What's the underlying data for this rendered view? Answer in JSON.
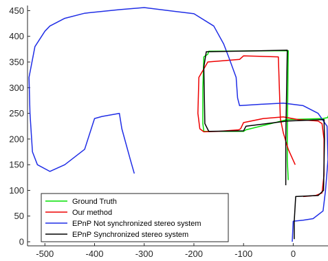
{
  "chart_data": {
    "type": "line",
    "title": "",
    "xlabel": "",
    "ylabel": "",
    "xlim": [
      -535,
      70
    ],
    "ylim": [
      -8,
      460
    ],
    "grid": false,
    "legend_position": "bottom-left",
    "x_ticks": [
      -500,
      -400,
      -300,
      -200,
      -100,
      0
    ],
    "y_ticks": [
      0,
      50,
      100,
      150,
      200,
      250,
      300,
      350,
      400,
      450
    ],
    "x_tick_labels": [
      "-500",
      "-400",
      "-300",
      "-200",
      "-100",
      "0"
    ],
    "y_tick_labels": [
      "0",
      "50",
      "100",
      "150",
      "200",
      "250",
      "300",
      "350",
      "400",
      "450"
    ],
    "series": [
      {
        "name": "Ground Truth",
        "color": "#00e000",
        "x": [
          -10,
          -12,
          -12,
          -10,
          -170,
          -172,
          -180,
          -182,
          -182,
          -180,
          -100,
          -95,
          -12,
          60,
          70,
          70
        ],
        "y": [
          120,
          160,
          200,
          372,
          371,
          365,
          360,
          300,
          230,
          215,
          215,
          218,
          238,
          240,
          242,
          245
        ]
      },
      {
        "name": "Our method",
        "color": "#ee0000",
        "x": [
          4,
          -10,
          -20,
          -26,
          -30,
          -100,
          -108,
          -172,
          -178,
          -190,
          -192,
          -188,
          -180,
          -150,
          -110,
          -106,
          -100,
          -60,
          -20,
          10,
          50,
          58,
          62,
          62,
          58,
          45,
          20
        ],
        "y": [
          150,
          180,
          212,
          240,
          360,
          362,
          355,
          350,
          340,
          320,
          250,
          220,
          214,
          215,
          218,
          220,
          232,
          240,
          243,
          238,
          235,
          230,
          200,
          130,
          95,
          90,
          88
        ]
      },
      {
        "name": "EPnP Not synchronized stereo system",
        "color": "#1f2de6",
        "x": [
          -320,
          -328,
          -345,
          -350,
          -385,
          -400,
          -420,
          -460,
          -490,
          -515,
          -525,
          -530,
          -532,
          -520,
          -500,
          -490,
          -460,
          -420,
          -350,
          -300,
          -200,
          -160,
          -140,
          -130,
          -115,
          -112,
          -108,
          -60,
          -20,
          20,
          50,
          68,
          70,
          65,
          60,
          40,
          20,
          0,
          -2
        ],
        "y": [
          133,
          160,
          220,
          250,
          244,
          240,
          180,
          150,
          137,
          150,
          175,
          250,
          320,
          380,
          410,
          420,
          435,
          445,
          452,
          456,
          444,
          420,
          385,
          360,
          320,
          280,
          265,
          268,
          270,
          265,
          250,
          225,
          160,
          100,
          60,
          45,
          42,
          40,
          0
        ]
      },
      {
        "name": "EPnP Synchronized stereo system",
        "color": "#000000",
        "x": [
          -15,
          -15,
          -12,
          -175,
          -180,
          -178,
          -170,
          -100,
          -95,
          -12,
          62,
          63,
          61,
          50,
          5,
          2,
          2
        ],
        "y": [
          110,
          200,
          373,
          370,
          340,
          230,
          215,
          216,
          225,
          235,
          238,
          200,
          100,
          90,
          88,
          40,
          5
        ]
      }
    ]
  }
}
